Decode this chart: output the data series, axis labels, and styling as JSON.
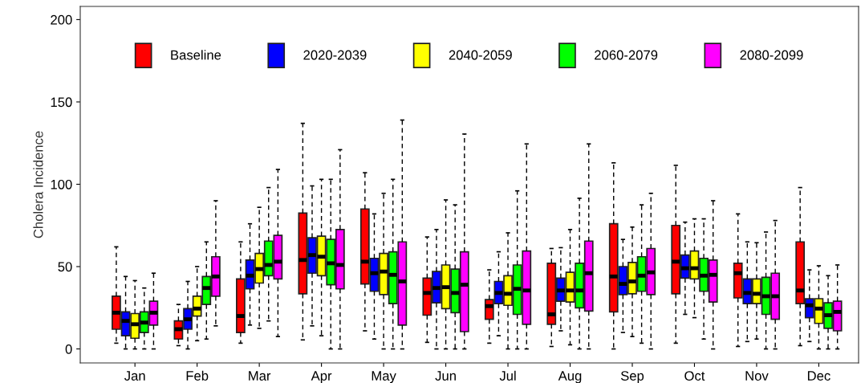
{
  "chart_data": {
    "type": "box",
    "ylabel": "Cholera Incidence",
    "categories": [
      "Jan",
      "Feb",
      "Mar",
      "Apr",
      "May",
      "Jun",
      "Jul",
      "Aug",
      "Sep",
      "Oct",
      "Nov",
      "Dec"
    ],
    "ylim": [
      -8.5,
      208
    ],
    "yticks": [
      0,
      50,
      100,
      150,
      200
    ],
    "grid": false,
    "legend": "top",
    "series": [
      {
        "name": "Baseline",
        "color": "#ff0000",
        "boxes": [
          {
            "low": 3.5,
            "q1": 12,
            "median": 22,
            "q3": 32,
            "high": 62
          },
          {
            "low": 2,
            "q1": 6,
            "median": 12,
            "q3": 17,
            "high": 27
          },
          {
            "low": 3.5,
            "q1": 10,
            "median": 20,
            "q3": 42.5,
            "high": 65
          },
          {
            "low": 5.5,
            "q1": 33.5,
            "median": 54,
            "q3": 82.5,
            "high": 137
          },
          {
            "low": 11,
            "q1": 39.5,
            "median": 53,
            "q3": 85,
            "high": 107
          },
          {
            "low": 4,
            "q1": 20.5,
            "median": 34,
            "q3": 43,
            "high": 68
          },
          {
            "low": 3.5,
            "q1": 18,
            "median": 26,
            "q3": 30,
            "high": 48
          },
          {
            "low": 1.5,
            "q1": 15,
            "median": 21,
            "q3": 52,
            "high": 61
          },
          {
            "low": 0,
            "q1": 22.5,
            "median": 44,
            "q3": 76,
            "high": 113
          },
          {
            "low": 3.5,
            "q1": 33.5,
            "median": 53,
            "q3": 75,
            "high": 111.5
          },
          {
            "low": 1.5,
            "q1": 31,
            "median": 46,
            "q3": 52,
            "high": 82
          },
          {
            "low": 2,
            "q1": 27.5,
            "median": 35.5,
            "q3": 65,
            "high": 98
          }
        ]
      },
      {
        "name": "2020-2039",
        "color": "#0000ff",
        "boxes": [
          {
            "low": 0,
            "q1": 8,
            "median": 17,
            "q3": 22.5,
            "high": 44
          },
          {
            "low": 0,
            "q1": 12,
            "median": 18,
            "q3": 24.5,
            "high": 41
          },
          {
            "low": 14.5,
            "q1": 36.5,
            "median": 44.5,
            "q3": 54,
            "high": 76
          },
          {
            "low": 14,
            "q1": 46,
            "median": 57,
            "q3": 67.5,
            "high": 99
          },
          {
            "low": 6,
            "q1": 35,
            "median": 46,
            "q3": 55,
            "high": 82
          },
          {
            "low": 0,
            "q1": 28,
            "median": 37,
            "q3": 47,
            "high": 72.5
          },
          {
            "low": 8,
            "q1": 27.5,
            "median": 34,
            "q3": 41,
            "high": 59
          },
          {
            "low": 11,
            "q1": 29,
            "median": 35.5,
            "q3": 43,
            "high": 61.5
          },
          {
            "low": 10,
            "q1": 33,
            "median": 39.5,
            "q3": 50,
            "high": 66.5
          },
          {
            "low": 21,
            "q1": 43,
            "median": 49,
            "q3": 57,
            "high": 77
          },
          {
            "low": 4.5,
            "q1": 27.5,
            "median": 34,
            "q3": 42.5,
            "high": 65
          },
          {
            "low": 4.5,
            "q1": 19,
            "median": 26.5,
            "q3": 30.5,
            "high": 48
          }
        ]
      },
      {
        "name": "2040-2059",
        "color": "#ffff00",
        "boxes": [
          {
            "low": 0,
            "q1": 6.5,
            "median": 15,
            "q3": 21.5,
            "high": 41.5
          },
          {
            "low": 5,
            "q1": 20,
            "median": 24.5,
            "q3": 32,
            "high": 50
          },
          {
            "low": 12.5,
            "q1": 40,
            "median": 48.5,
            "q3": 58,
            "high": 86
          },
          {
            "low": 8,
            "q1": 44.5,
            "median": 56,
            "q3": 68.5,
            "high": 103
          },
          {
            "low": 0,
            "q1": 33,
            "median": 47,
            "q3": 58,
            "high": 94.5
          },
          {
            "low": 0,
            "q1": 24.5,
            "median": 37.5,
            "q3": 51,
            "high": 90.5
          },
          {
            "low": 0,
            "q1": 26.5,
            "median": 33.5,
            "q3": 44.5,
            "high": 70.5
          },
          {
            "low": 2.5,
            "q1": 28.5,
            "median": 35.5,
            "q3": 46.5,
            "high": 72.5
          },
          {
            "low": 7.5,
            "q1": 33.5,
            "median": 41,
            "q3": 52.5,
            "high": 74
          },
          {
            "low": 19,
            "q1": 42.5,
            "median": 49,
            "q3": 59.5,
            "high": 79
          },
          {
            "low": 6,
            "q1": 27.5,
            "median": 33.5,
            "q3": 42.5,
            "high": 64.5
          },
          {
            "low": 0,
            "q1": 15.5,
            "median": 24.5,
            "q3": 30.5,
            "high": 50.5
          }
        ]
      },
      {
        "name": "2060-2079",
        "color": "#00ff00",
        "boxes": [
          {
            "low": 0,
            "q1": 10,
            "median": 16,
            "q3": 22.5,
            "high": 37
          },
          {
            "low": 6,
            "q1": 27,
            "median": 37,
            "q3": 44,
            "high": 65
          },
          {
            "low": 17,
            "q1": 44.5,
            "median": 51,
            "q3": 65.5,
            "high": 98
          },
          {
            "low": 0,
            "q1": 39,
            "median": 52,
            "q3": 66.5,
            "high": 103
          },
          {
            "low": 0,
            "q1": 27.5,
            "median": 45,
            "q3": 59,
            "high": 103
          },
          {
            "low": 0,
            "q1": 22,
            "median": 34,
            "q3": 48.5,
            "high": 87.5
          },
          {
            "low": 0,
            "q1": 21,
            "median": 36.5,
            "q3": 51,
            "high": 96
          },
          {
            "low": 0,
            "q1": 25,
            "median": 35.5,
            "q3": 52,
            "high": 91.5
          },
          {
            "low": 3.5,
            "q1": 35,
            "median": 44.5,
            "q3": 56,
            "high": 87.5
          },
          {
            "low": 6,
            "q1": 35,
            "median": 44.5,
            "q3": 55,
            "high": 79
          },
          {
            "low": 0,
            "q1": 21,
            "median": 32,
            "q3": 43.5,
            "high": 71
          },
          {
            "low": 0,
            "q1": 12.5,
            "median": 20.5,
            "q3": 28,
            "high": 44.5
          }
        ]
      },
      {
        "name": "2080-2099",
        "color": "#ff00ff",
        "boxes": [
          {
            "low": 0,
            "q1": 14.5,
            "median": 22,
            "q3": 29,
            "high": 46
          },
          {
            "low": 14,
            "q1": 32,
            "median": 44,
            "q3": 56,
            "high": 90
          },
          {
            "low": 7.5,
            "q1": 42.5,
            "median": 53,
            "q3": 69,
            "high": 109
          },
          {
            "low": 0,
            "q1": 36.5,
            "median": 51,
            "q3": 72.5,
            "high": 121
          },
          {
            "low": 0,
            "q1": 14.5,
            "median": 41,
            "q3": 65,
            "high": 139
          },
          {
            "low": 0,
            "q1": 10.5,
            "median": 39,
            "q3": 59,
            "high": 130.5
          },
          {
            "low": 0,
            "q1": 15,
            "median": 35.5,
            "q3": 59.5,
            "high": 124.5
          },
          {
            "low": 0,
            "q1": 23,
            "median": 46,
            "q3": 65.5,
            "high": 124.5
          },
          {
            "low": 0,
            "q1": 33,
            "median": 46.5,
            "q3": 61,
            "high": 94.5
          },
          {
            "low": 0,
            "q1": 28.5,
            "median": 45,
            "q3": 54,
            "high": 90
          },
          {
            "low": 0,
            "q1": 18,
            "median": 32,
            "q3": 46,
            "high": 78
          },
          {
            "low": 0,
            "q1": 11,
            "median": 22.5,
            "q3": 29,
            "high": 51
          }
        ]
      }
    ]
  }
}
